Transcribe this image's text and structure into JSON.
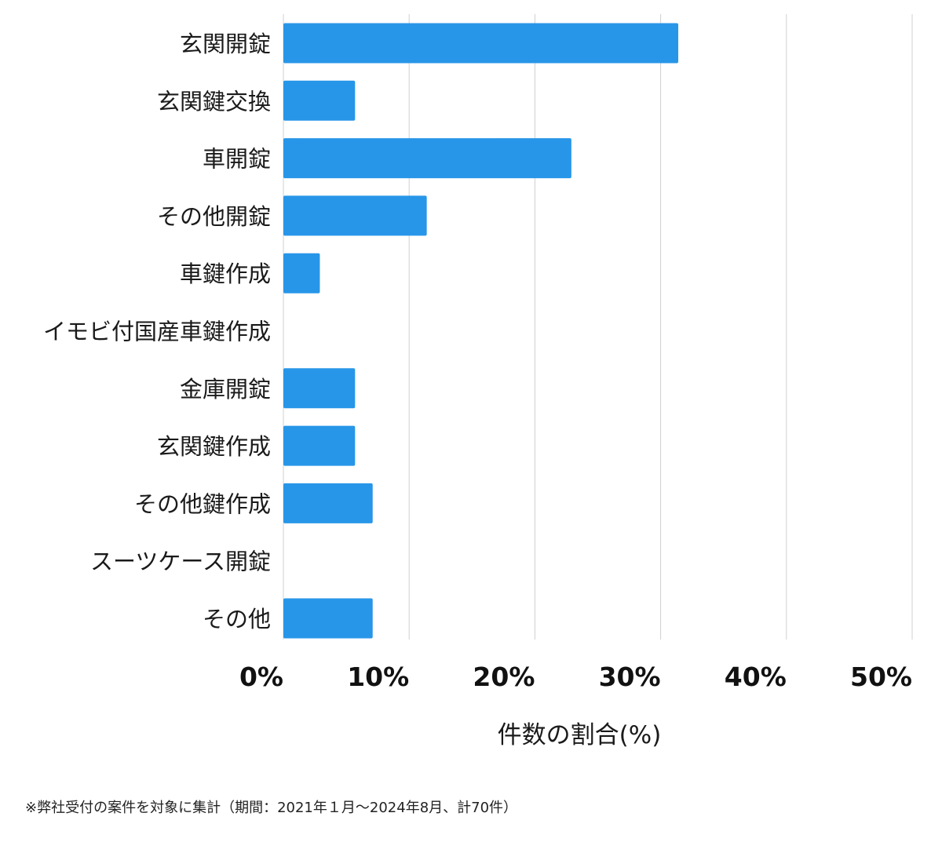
{
  "chart_data": {
    "type": "bar",
    "orientation": "horizontal",
    "categories": [
      "玄関開錠",
      "玄関鍵交換",
      "車開錠",
      "その他開錠",
      "車鍵作成",
      "イモビ付国産車鍵作成",
      "金庫開錠",
      "玄関鍵作成",
      "その他鍵作成",
      "スーツケース開錠",
      "その他"
    ],
    "values": [
      31.4,
      5.7,
      22.9,
      11.4,
      2.9,
      0,
      5.7,
      5.7,
      7.1,
      0,
      7.1
    ],
    "xlim": [
      0,
      50
    ],
    "xticks": [
      0,
      10,
      20,
      30,
      40,
      50
    ],
    "tick_labels": [
      "0%",
      "10%",
      "20%",
      "30%",
      "40%",
      "50%"
    ],
    "xlabel": "件数の割合(%)",
    "grid": true,
    "bar_color": "#2896e8",
    "footnote": "※弊社受付の案件を対象に集計（期間：2021年１月〜2024年8月、計70件）"
  }
}
